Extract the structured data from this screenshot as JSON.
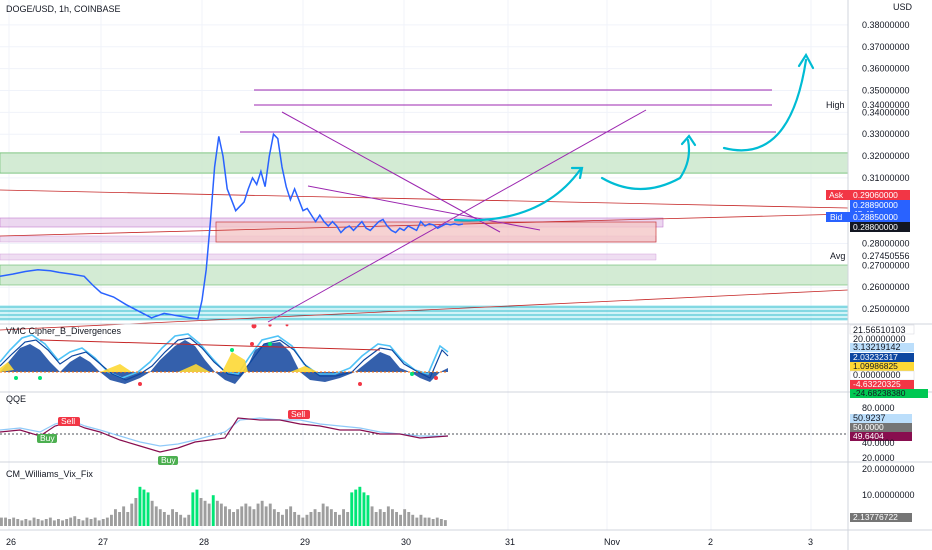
{
  "header": {
    "symbol": "DOGE/USD, 1h, COINBASE"
  },
  "price_axis": {
    "currency": "USD",
    "ticks": [
      "0.38000000",
      "0.37000000",
      "0.36000000",
      "0.35000000",
      "0.34000000",
      "0.33000000",
      "0.32000000",
      "0.31000000",
      "0.28000000",
      "0.27000000",
      "0.26000000",
      "0.25000000"
    ],
    "high_label": "High",
    "ask_label": "Ask",
    "bid_label": "Bid",
    "avg_label": "Avg",
    "ask_value": "0.29060000",
    "last_value": "0.28890000",
    "countdown": "45:43",
    "bid_value": "0.28850000",
    "close_value": "0.28800000",
    "avg_value": "0.27450556",
    "high_value": "0.34000000"
  },
  "time_axis": {
    "ticks": [
      "26",
      "27",
      "28",
      "29",
      "30",
      "31",
      "Nov",
      "2",
      "3"
    ]
  },
  "panes": {
    "vmc": {
      "title": "VMC Cipher_B_Divergences",
      "values": [
        "21.56510103",
        "20.00000000",
        "3.13219142",
        "2.03232317",
        "1.09986825",
        "0.00000000",
        "-4.63220325",
        "-24.68238380",
        "-57.485"
      ]
    },
    "qqe": {
      "title": "QQE",
      "ticks": [
        "80.0000",
        "40.0000",
        "20.0000"
      ],
      "values": [
        "50.9237",
        "50.0000",
        "49.6404"
      ],
      "signals": {
        "sell": "Sell",
        "buy": "Buy"
      }
    },
    "vix": {
      "title": "CM_Williams_Vix_Fix",
      "ticks": [
        "20.00000000",
        "10.00000000"
      ],
      "value": "2.13776722"
    }
  },
  "colors": {
    "bg": "#ffffff",
    "price_line": "#2962ff",
    "drawing_purple": "#9c27b0",
    "arrow_cyan": "#00bcd4",
    "zone_green": "#c8e6c9",
    "zone_red": "#f4c7c7",
    "ask_red": "#f23645",
    "bid_blue": "#2962ff",
    "vix_green": "#00e676",
    "vix_gray": "#9e9e9e"
  },
  "chart_data": {
    "type": "line",
    "title": "DOGE/USD, 1h, COINBASE",
    "x_unit": "hours from Oct 26 00:00",
    "ylim": [
      0.245,
      0.385
    ],
    "price_series": {
      "x": [
        0,
        3,
        6,
        9,
        12,
        14,
        17,
        20,
        22,
        24,
        27,
        30,
        33,
        36,
        39,
        42,
        45,
        47,
        48,
        49,
        50,
        51,
        52,
        53,
        54,
        55,
        56,
        57,
        58,
        59,
        60,
        61,
        62,
        63,
        64,
        65,
        66,
        67,
        68,
        69,
        70,
        71,
        72,
        73,
        74,
        75,
        76,
        77,
        78,
        79,
        80,
        81,
        82,
        83,
        84,
        85,
        86,
        87,
        88,
        89,
        90,
        91,
        92,
        93,
        94,
        95,
        96,
        97,
        98,
        99,
        100,
        101,
        102,
        103,
        104,
        105,
        106,
        107,
        108,
        109,
        110
      ],
      "y": [
        0.265,
        0.266,
        0.2672,
        0.268,
        0.2675,
        0.2668,
        0.266,
        0.265,
        0.261,
        0.2575,
        0.2555,
        0.252,
        0.249,
        0.246,
        0.248,
        0.247,
        0.246,
        0.2455,
        0.254,
        0.268,
        0.29,
        0.315,
        0.329,
        0.32,
        0.305,
        0.3,
        0.295,
        0.297,
        0.299,
        0.305,
        0.31,
        0.307,
        0.313,
        0.306,
        0.32,
        0.33,
        0.328,
        0.315,
        0.306,
        0.3,
        0.305,
        0.3,
        0.295,
        0.296,
        0.293,
        0.29,
        0.293,
        0.29,
        0.288,
        0.29,
        0.288,
        0.285,
        0.287,
        0.288,
        0.286,
        0.288,
        0.29,
        0.287,
        0.286,
        0.288,
        0.29,
        0.291,
        0.288,
        0.286,
        0.285,
        0.287,
        0.286,
        0.288,
        0.287,
        0.286,
        0.29,
        0.288,
        0.289,
        0.2885,
        0.287,
        0.288,
        0.289,
        0.2885,
        0.289,
        0.2885,
        0.2889
      ]
    },
    "horizontal_levels": [
      0.346,
      0.34,
      0.328
    ],
    "vix_bars": [
      3,
      3,
      2.5,
      3,
      2.5,
      2,
      2.5,
      2,
      3,
      2.5,
      2,
      2.5,
      3,
      2,
      2.5,
      2,
      2.5,
      3,
      3.5,
      2.5,
      2,
      3,
      2.5,
      3,
      2,
      2.5,
      3,
      4,
      6,
      5,
      7,
      5,
      8,
      10,
      14,
      13,
      12,
      9,
      7,
      6,
      5,
      4,
      6,
      5,
      4,
      3,
      4,
      12,
      13,
      10,
      9,
      8,
      11,
      9,
      8,
      7,
      6,
      5,
      6,
      7,
      8,
      7,
      6,
      8,
      9,
      7,
      8,
      6,
      5,
      4,
      6,
      7,
      5,
      4,
      3,
      4,
      5,
      6,
      5,
      8,
      7,
      6,
      5,
      4,
      6,
      5,
      12,
      13,
      14,
      12,
      11,
      7,
      5,
      6,
      5,
      7,
      6,
      5,
      4,
      6,
      5,
      4,
      3,
      4,
      3,
      3,
      2.5,
      3,
      2.5,
      2.1
    ]
  }
}
